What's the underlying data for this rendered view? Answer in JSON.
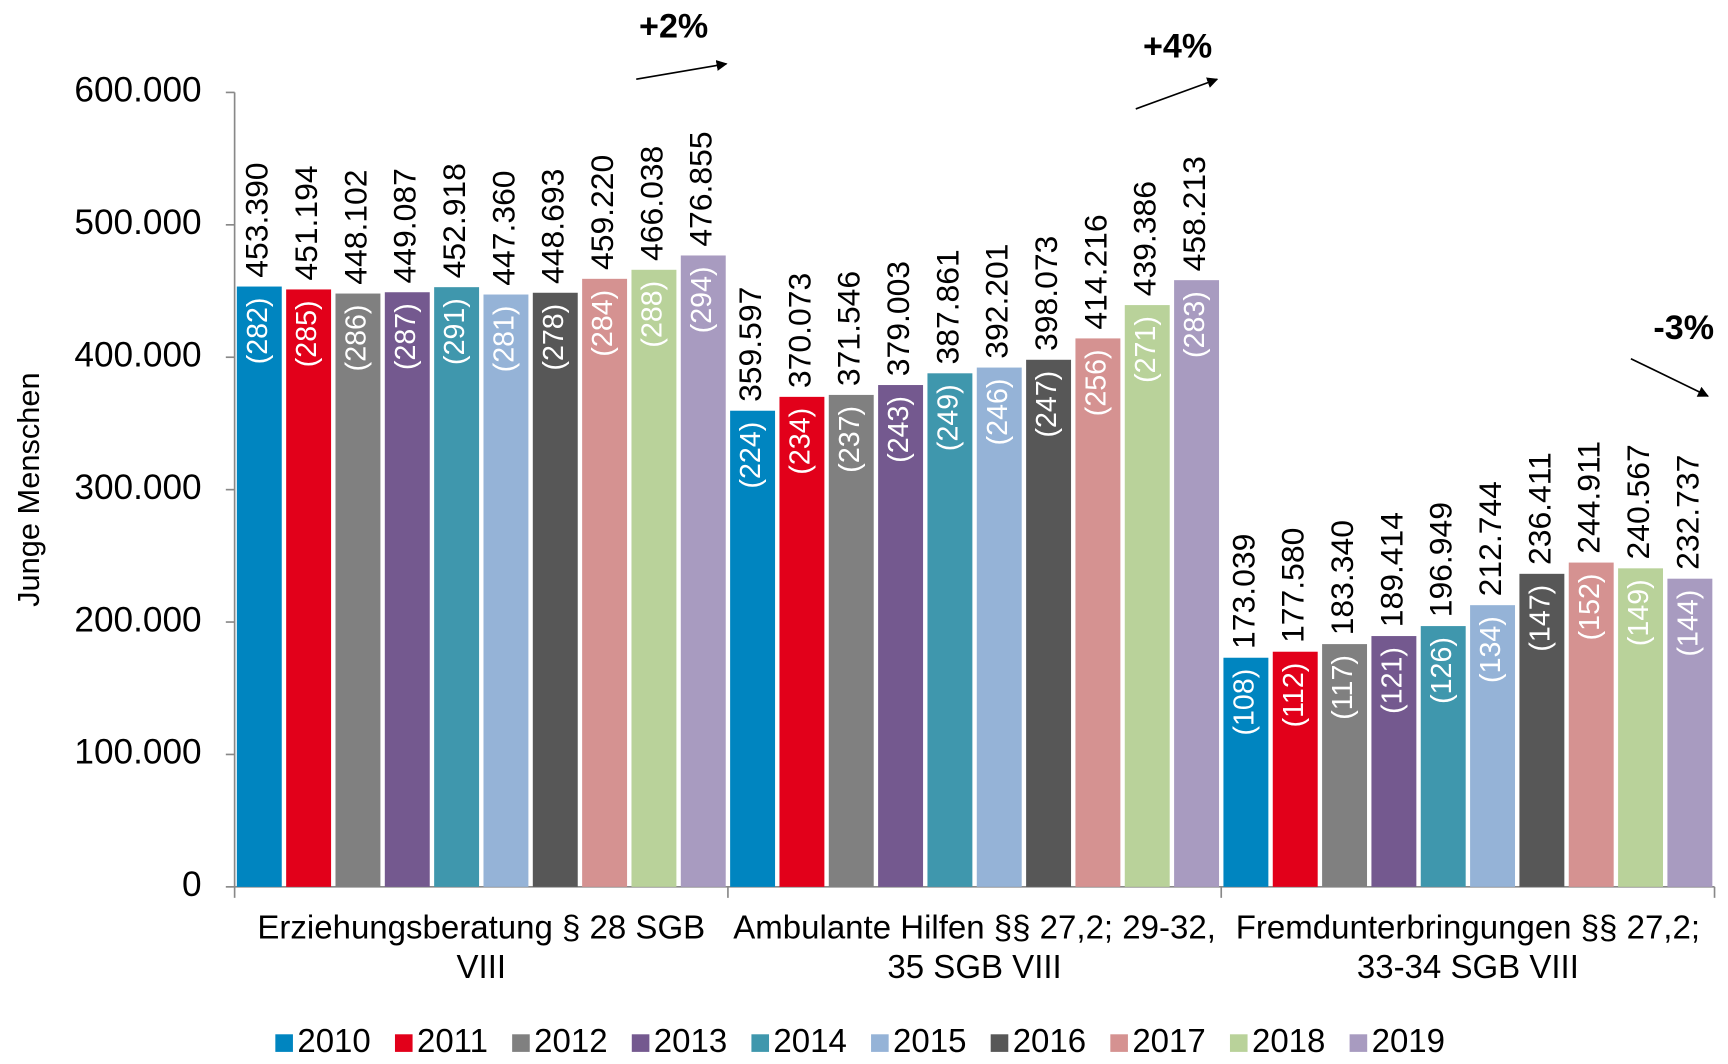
{
  "chart_data": {
    "type": "bar",
    "y_label": "Junge Menschen",
    "categories": [
      "Erziehungsberatung § 28 SGB VIII",
      "Ambulante Hilfen §§ 27,2; 29-32, 35 SGB VIII",
      "Fremdunterbringungen §§ 27,2; 33-34 SGB VIII"
    ],
    "ylim": [
      0,
      600000
    ],
    "yticks": [
      0,
      {
        "value": 100000,
        "label": "100.000"
      },
      {
        "value": 200000,
        "label": "200.000"
      },
      {
        "value": 300000,
        "label": "300.000"
      },
      {
        "value": 400000,
        "label": "400.000"
      },
      {
        "value": 500000,
        "label": "500.000"
      },
      {
        "value": 600000,
        "label": "600.000"
      }
    ],
    "annotations": [
      "+2%",
      "+4%",
      "-3%"
    ],
    "legend": "bottom",
    "series": [
      {
        "name": "2010",
        "color": "#0085c0",
        "values": [
          453390,
          359597,
          173039
        ],
        "value_labels": [
          "453.390",
          "359.597",
          "173.039"
        ],
        "inner_labels": [
          "(282)",
          "(224)",
          "(108)"
        ]
      },
      {
        "name": "2011",
        "color": "#e2001a",
        "values": [
          451194,
          370073,
          177580
        ],
        "value_labels": [
          "451.194",
          "370.073",
          "177.580"
        ],
        "inner_labels": [
          "(285)",
          "(234)",
          "(112)"
        ]
      },
      {
        "name": "2012",
        "color": "#808080",
        "values": [
          448102,
          371546,
          183340
        ],
        "value_labels": [
          "448.102",
          "371.546",
          "183.340"
        ],
        "inner_labels": [
          "(286)",
          "(237)",
          "(117)"
        ]
      },
      {
        "name": "2013",
        "color": "#74598f",
        "values": [
          449087,
          379003,
          189414
        ],
        "value_labels": [
          "449.087",
          "379.003",
          "189.414"
        ],
        "inner_labels": [
          "(287)",
          "(243)",
          "(121)"
        ]
      },
      {
        "name": "2014",
        "color": "#3f97ad",
        "values": [
          452918,
          387861,
          196949
        ],
        "value_labels": [
          "452.918",
          "387.861",
          "196.949"
        ],
        "inner_labels": [
          "(291)",
          "(249)",
          "(126)"
        ]
      },
      {
        "name": "2015",
        "color": "#95b3d7",
        "values": [
          447360,
          392201,
          212744
        ],
        "value_labels": [
          "447.360",
          "392.201",
          "212.744"
        ],
        "inner_labels": [
          "(281)",
          "(246)",
          "(134)"
        ]
      },
      {
        "name": "2016",
        "color": "#575757",
        "values": [
          448693,
          398073,
          236411
        ],
        "value_labels": [
          "448.693",
          "398.073",
          "236.411"
        ],
        "inner_labels": [
          "(278)",
          "(247)",
          "(147)"
        ]
      },
      {
        "name": "2017",
        "color": "#d59291",
        "values": [
          459220,
          414216,
          244911
        ],
        "value_labels": [
          "459.220",
          "414.216",
          "244.911"
        ],
        "inner_labels": [
          "(284)",
          "(256)",
          "(152)"
        ]
      },
      {
        "name": "2018",
        "color": "#b9d29a",
        "values": [
          466038,
          439386,
          240567
        ],
        "value_labels": [
          "466.038",
          "439.386",
          "240.567"
        ],
        "inner_labels": [
          "(288)",
          "(271)",
          "(149)"
        ]
      },
      {
        "name": "2019",
        "color": "#a89bc0",
        "values": [
          476855,
          458213,
          232737
        ],
        "value_labels": [
          "476.855",
          "458.213",
          "232.737"
        ],
        "inner_labels": [
          "(294)",
          "(283)",
          "(144)"
        ]
      }
    ]
  }
}
